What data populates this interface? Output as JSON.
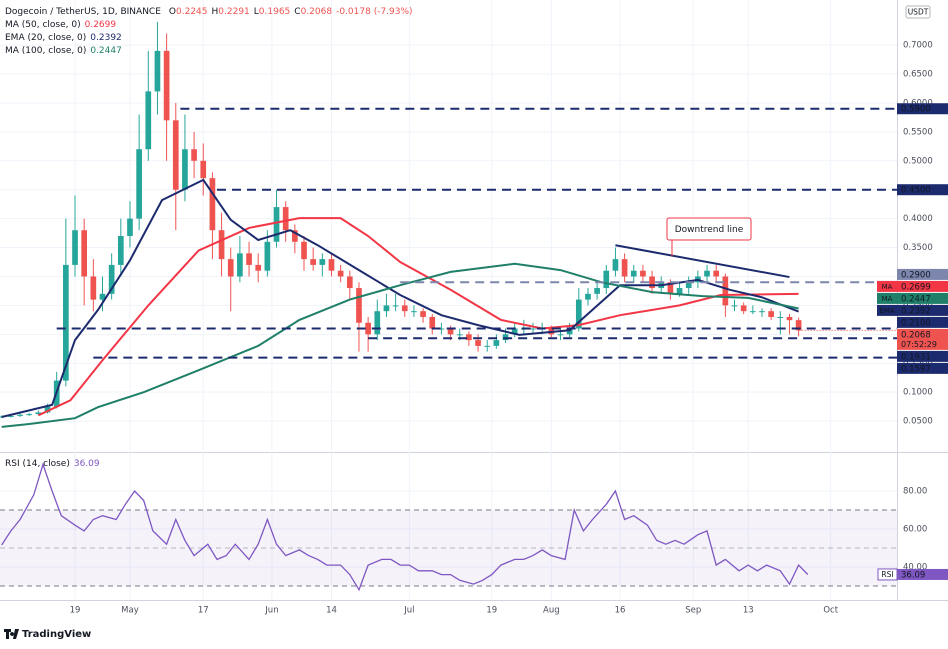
{
  "brand": "TradingView",
  "chart_data": [
    {
      "type": "candlestick",
      "title": "Dogecoin / TetherUS, 1D, BINANCE",
      "ohlc_letters": [
        "O",
        "H",
        "L",
        "C"
      ],
      "change": "-0.0178 (-7.93%)",
      "unit": "USDT",
      "countdown": "07:52:29",
      "up_color": "#26a69a",
      "down_color": "#ef5350",
      "grid": true,
      "xlim": [
        -16.38,
        179.48
      ],
      "ylim": [
        0,
        0.778
      ],
      "xticks": [
        {
          "value": 0,
          "label": "19"
        },
        {
          "value": 12,
          "label": "May"
        },
        {
          "value": 28,
          "label": "17"
        },
        {
          "value": 43,
          "label": "Jun"
        },
        {
          "value": 56,
          "label": "14"
        },
        {
          "value": 73,
          "label": "Jul"
        },
        {
          "value": 91,
          "label": "19"
        },
        {
          "value": 104,
          "label": "Aug"
        },
        {
          "value": 119,
          "label": "16"
        },
        {
          "value": 135,
          "label": "Sep"
        },
        {
          "value": 147,
          "label": "13"
        },
        {
          "value": 165,
          "label": "Oct"
        }
      ],
      "yticks": [
        {
          "value": 0.05,
          "label": "0.0500"
        },
        {
          "value": 0.1,
          "label": "0.1000"
        },
        {
          "value": 0.15,
          "label": "0.1500"
        },
        {
          "value": 0.2,
          "label": "0.2000"
        },
        {
          "value": 0.25,
          "label": "0.2500"
        },
        {
          "value": 0.3,
          "label": "0.3000"
        },
        {
          "value": 0.35,
          "label": "0.3500"
        },
        {
          "value": 0.4,
          "label": "0.4000"
        },
        {
          "value": 0.45,
          "label": "0.4500"
        },
        {
          "value": 0.5,
          "label": "0.5000"
        },
        {
          "value": 0.55,
          "label": "0.5500"
        },
        {
          "value": 0.6,
          "label": "0.6000"
        },
        {
          "value": 0.65,
          "label": "0.6500"
        },
        {
          "value": 0.7,
          "label": "0.7000"
        }
      ],
      "x": [
        -16,
        -14,
        -12,
        -10,
        -8,
        -6,
        -4,
        -2,
        0,
        2,
        4,
        6,
        8,
        10,
        12,
        14,
        16,
        18,
        20,
        22,
        24,
        26,
        28,
        30,
        32,
        34,
        36,
        38,
        40,
        42,
        44,
        46,
        48,
        50,
        52,
        54,
        56,
        58,
        60,
        62,
        64,
        66,
        68,
        70,
        72,
        74,
        76,
        78,
        80,
        82,
        84,
        86,
        88,
        90,
        92,
        94,
        96,
        98,
        100,
        102,
        104,
        106,
        108,
        110,
        112,
        114,
        116,
        118,
        120,
        122,
        124,
        126,
        128,
        130,
        132,
        134,
        136,
        138,
        140,
        142,
        144,
        146,
        148,
        150,
        152,
        154,
        156,
        158
      ],
      "ohlc": [
        [
          0.057,
          0.06,
          0.055,
          0.058
        ],
        [
          0.058,
          0.061,
          0.056,
          0.059
        ],
        [
          0.059,
          0.063,
          0.057,
          0.061
        ],
        [
          0.061,
          0.064,
          0.059,
          0.062
        ],
        [
          0.062,
          0.068,
          0.06,
          0.065
        ],
        [
          0.065,
          0.08,
          0.063,
          0.075
        ],
        [
          0.075,
          0.135,
          0.072,
          0.12
        ],
        [
          0.12,
          0.4,
          0.11,
          0.32
        ],
        [
          0.32,
          0.44,
          0.3,
          0.38
        ],
        [
          0.38,
          0.4,
          0.25,
          0.3
        ],
        [
          0.3,
          0.33,
          0.24,
          0.26
        ],
        [
          0.26,
          0.3,
          0.24,
          0.27
        ],
        [
          0.27,
          0.34,
          0.26,
          0.32
        ],
        [
          0.32,
          0.4,
          0.3,
          0.37
        ],
        [
          0.37,
          0.43,
          0.35,
          0.4
        ],
        [
          0.4,
          0.58,
          0.38,
          0.52
        ],
        [
          0.52,
          0.69,
          0.5,
          0.62
        ],
        [
          0.62,
          0.74,
          0.58,
          0.69
        ],
        [
          0.69,
          0.72,
          0.5,
          0.57
        ],
        [
          0.57,
          0.6,
          0.38,
          0.45
        ],
        [
          0.45,
          0.58,
          0.43,
          0.52
        ],
        [
          0.52,
          0.55,
          0.47,
          0.5
        ],
        [
          0.5,
          0.53,
          0.44,
          0.47
        ],
        [
          0.47,
          0.48,
          0.33,
          0.38
        ],
        [
          0.38,
          0.41,
          0.3,
          0.33
        ],
        [
          0.33,
          0.35,
          0.24,
          0.3
        ],
        [
          0.3,
          0.37,
          0.29,
          0.34
        ],
        [
          0.34,
          0.36,
          0.3,
          0.32
        ],
        [
          0.32,
          0.34,
          0.29,
          0.31
        ],
        [
          0.31,
          0.38,
          0.3,
          0.36
        ],
        [
          0.36,
          0.45,
          0.35,
          0.42
        ],
        [
          0.42,
          0.43,
          0.36,
          0.38
        ],
        [
          0.38,
          0.39,
          0.34,
          0.36
        ],
        [
          0.36,
          0.37,
          0.31,
          0.33
        ],
        [
          0.33,
          0.35,
          0.31,
          0.32
        ],
        [
          0.32,
          0.34,
          0.3,
          0.33
        ],
        [
          0.33,
          0.34,
          0.3,
          0.31
        ],
        [
          0.31,
          0.32,
          0.29,
          0.3
        ],
        [
          0.3,
          0.31,
          0.26,
          0.28
        ],
        [
          0.28,
          0.29,
          0.17,
          0.22
        ],
        [
          0.22,
          0.23,
          0.17,
          0.2
        ],
        [
          0.2,
          0.26,
          0.19,
          0.24
        ],
        [
          0.24,
          0.27,
          0.23,
          0.25
        ],
        [
          0.25,
          0.27,
          0.24,
          0.25
        ],
        [
          0.25,
          0.26,
          0.23,
          0.24
        ],
        [
          0.24,
          0.25,
          0.23,
          0.24
        ],
        [
          0.24,
          0.245,
          0.22,
          0.23
        ],
        [
          0.23,
          0.235,
          0.2,
          0.21
        ],
        [
          0.21,
          0.22,
          0.2,
          0.21
        ],
        [
          0.21,
          0.215,
          0.19,
          0.2
        ],
        [
          0.2,
          0.21,
          0.19,
          0.2
        ],
        [
          0.2,
          0.205,
          0.18,
          0.19
        ],
        [
          0.19,
          0.2,
          0.17,
          0.18
        ],
        [
          0.18,
          0.19,
          0.17,
          0.18
        ],
        [
          0.18,
          0.2,
          0.175,
          0.19
        ],
        [
          0.19,
          0.21,
          0.185,
          0.2
        ],
        [
          0.2,
          0.22,
          0.195,
          0.21
        ],
        [
          0.21,
          0.225,
          0.2,
          0.21
        ],
        [
          0.21,
          0.22,
          0.2,
          0.21
        ],
        [
          0.21,
          0.22,
          0.2,
          0.21
        ],
        [
          0.21,
          0.215,
          0.195,
          0.2
        ],
        [
          0.2,
          0.21,
          0.19,
          0.2
        ],
        [
          0.2,
          0.22,
          0.195,
          0.21
        ],
        [
          0.21,
          0.28,
          0.205,
          0.26
        ],
        [
          0.26,
          0.28,
          0.25,
          0.27
        ],
        [
          0.27,
          0.29,
          0.26,
          0.28
        ],
        [
          0.28,
          0.32,
          0.27,
          0.31
        ],
        [
          0.31,
          0.35,
          0.3,
          0.33
        ],
        [
          0.33,
          0.34,
          0.29,
          0.3
        ],
        [
          0.3,
          0.32,
          0.29,
          0.31
        ],
        [
          0.31,
          0.32,
          0.29,
          0.3
        ],
        [
          0.3,
          0.31,
          0.27,
          0.28
        ],
        [
          0.28,
          0.3,
          0.27,
          0.29
        ],
        [
          0.29,
          0.295,
          0.26,
          0.27
        ],
        [
          0.27,
          0.29,
          0.265,
          0.28
        ],
        [
          0.28,
          0.3,
          0.27,
          0.29
        ],
        [
          0.29,
          0.31,
          0.28,
          0.3
        ],
        [
          0.3,
          0.32,
          0.29,
          0.31
        ],
        [
          0.31,
          0.32,
          0.29,
          0.3
        ],
        [
          0.3,
          0.305,
          0.23,
          0.25
        ],
        [
          0.25,
          0.26,
          0.24,
          0.25
        ],
        [
          0.25,
          0.255,
          0.235,
          0.24
        ],
        [
          0.24,
          0.25,
          0.235,
          0.24
        ],
        [
          0.24,
          0.245,
          0.23,
          0.24
        ],
        [
          0.24,
          0.245,
          0.225,
          0.23
        ],
        [
          0.23,
          0.24,
          0.2,
          0.23
        ],
        [
          0.23,
          0.235,
          0.2,
          0.2245
        ],
        [
          0.2245,
          0.2291,
          0.1965,
          0.2068
        ]
      ],
      "series": [
        {
          "name": "MA (50, close, 0)",
          "tag": "MA",
          "color": "#f23645",
          "x": [
            -8,
            -1,
            6,
            16,
            27,
            38,
            49,
            58,
            64,
            71,
            82,
            93,
            102,
            110,
            119,
            132,
            141,
            158
          ],
          "values": [
            0.06,
            0.086,
            0.155,
            0.25,
            0.345,
            0.384,
            0.401,
            0.401,
            0.37,
            0.325,
            0.277,
            0.225,
            0.21,
            0.216,
            0.233,
            0.25,
            0.268,
            0.2699
          ]
        },
        {
          "name": "EMA (20, close, 0)",
          "tag": "EMA",
          "color": "#1c2a6e",
          "x": [
            -16,
            -5,
            0,
            5,
            12,
            19,
            28,
            34,
            40,
            47,
            53,
            62,
            71,
            80,
            88,
            97,
            108,
            119,
            128,
            136,
            143,
            150,
            158
          ],
          "values": [
            0.057,
            0.078,
            0.19,
            0.242,
            0.328,
            0.432,
            0.467,
            0.398,
            0.363,
            0.38,
            0.354,
            0.311,
            0.268,
            0.233,
            0.216,
            0.199,
            0.207,
            0.285,
            0.285,
            0.294,
            0.277,
            0.264,
            0.2392
          ]
        },
        {
          "name": "MA (100, close, 0)",
          "tag": "MA",
          "color": "#1f7f68",
          "x": [
            -16,
            -10,
            0,
            5,
            15,
            27,
            40,
            49,
            60,
            71,
            82,
            96,
            106,
            115,
            126,
            137,
            147,
            158
          ],
          "values": [
            0.04,
            0.045,
            0.055,
            0.074,
            0.1,
            0.138,
            0.18,
            0.225,
            0.26,
            0.285,
            0.308,
            0.322,
            0.311,
            0.29,
            0.273,
            0.266,
            0.263,
            0.2447
          ]
        }
      ],
      "levels": [
        {
          "value": 0.59,
          "label": "0.5900",
          "from": 23,
          "color": "#1c2a6e"
        },
        {
          "value": 0.45,
          "label": "0.4500",
          "from": 31,
          "color": "#1c2a6e"
        },
        {
          "value": 0.29,
          "label": "0.2900",
          "from": 71,
          "color": "#7d86ad"
        },
        {
          "value": 0.21,
          "label": "0.2100",
          "from": -4,
          "color": "#1c2a6e"
        },
        {
          "value": 0.1931,
          "label": "0.1931",
          "from": 64,
          "color": "#1c2a6e"
        },
        {
          "value": 0.1597,
          "label": "0.1597",
          "from": 4,
          "color": "#1c2a6e"
        }
      ],
      "trendline": {
        "label": "Downtrend line",
        "x": [
          118,
          156
        ],
        "values": [
          0.354,
          0.299
        ],
        "color": "#1c2a6e"
      }
    },
    {
      "type": "line",
      "title": "RSI (14, close)",
      "tag": "RSI",
      "color": "#7e57c2",
      "xlim": [
        -16.38,
        179.48
      ],
      "ylim": [
        23.7,
        100
      ],
      "yticks": [
        {
          "value": 40,
          "label": "40.00"
        },
        {
          "value": 60,
          "label": "60.00"
        },
        {
          "value": 80,
          "label": "80.00"
        }
      ],
      "bands": [
        30,
        50,
        70
      ],
      "x": [
        -16,
        -14,
        -12,
        -9,
        -7,
        -5,
        -3,
        0,
        2,
        4,
        6,
        9,
        11,
        13,
        15,
        17,
        20,
        22,
        24,
        26,
        29,
        31,
        33,
        35,
        38,
        40,
        42,
        44,
        46,
        49,
        51,
        53,
        55,
        58,
        60,
        62,
        64,
        67,
        69,
        71,
        73,
        75,
        78,
        80,
        82,
        84,
        87,
        89,
        91,
        93,
        96,
        98,
        100,
        102,
        104,
        107,
        109,
        111,
        113,
        116,
        118,
        120,
        122,
        125,
        127,
        129,
        131,
        133,
        136,
        138,
        140,
        142,
        145,
        147,
        149,
        151,
        154,
        156,
        158,
        160
      ],
      "values": [
        51.6,
        59,
        65,
        78,
        94,
        80,
        67,
        62,
        59,
        65,
        67,
        65,
        73,
        80,
        75,
        59,
        52,
        65,
        54,
        46,
        52,
        44,
        46,
        52,
        44,
        52,
        65,
        52,
        46,
        49,
        46,
        44,
        41,
        41,
        36,
        28,
        41,
        44,
        44,
        41,
        41,
        38,
        38,
        36,
        36,
        33,
        31,
        33,
        36,
        41,
        44,
        44,
        46,
        49,
        46,
        44,
        70,
        59,
        65,
        73,
        80,
        65,
        67,
        62,
        54,
        52,
        54,
        52,
        57,
        59,
        41,
        44,
        38,
        41,
        38,
        41,
        38,
        31,
        41,
        36.09
      ]
    }
  ]
}
